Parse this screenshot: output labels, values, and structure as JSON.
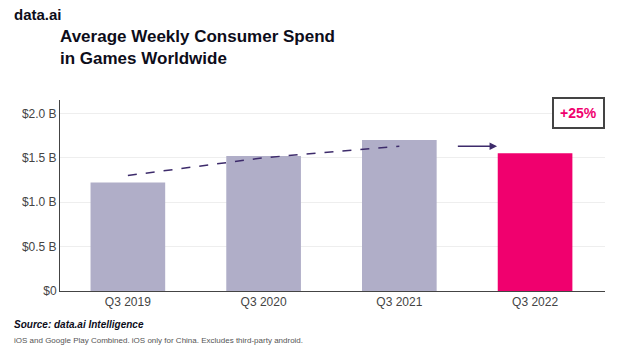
{
  "chart_data": {
    "type": "bar",
    "title": "Average Weekly Consumer Spend\nin Games Worldwide",
    "categories": [
      "Q3 2019",
      "Q3 2020",
      "Q3 2021",
      "Q3 2022"
    ],
    "series": [
      {
        "type": "bar",
        "values": [
          1.22,
          1.52,
          1.7,
          1.55
        ],
        "colors": [
          "#b0aec8",
          "#b0aec8",
          "#b0aec8",
          "#f0006e"
        ]
      },
      {
        "type": "line",
        "values": [
          1.3,
          1.5,
          1.63,
          null
        ],
        "color": "#3d2b6b",
        "line_style": "dashed"
      }
    ],
    "ylim": [
      0,
      2.15
    ],
    "yticks": [
      {
        "value": 0,
        "label": "$0"
      },
      {
        "value": 0.5,
        "label": "$0.5 B"
      },
      {
        "value": 1.0,
        "label": "$1.0 B"
      },
      {
        "value": 1.5,
        "label": "$1.5 B"
      },
      {
        "value": 2.0,
        "label": "$2.0 B"
      }
    ],
    "grid": true,
    "annotations": [
      {
        "text": "+25%",
        "color": "#f0006e"
      },
      {
        "text": "data.ai"
      },
      {
        "text": "Source: data.ai Intelligence"
      },
      {
        "text": "iOS and Google Play Combined. iOS only for China. Excludes third-party android."
      }
    ]
  }
}
